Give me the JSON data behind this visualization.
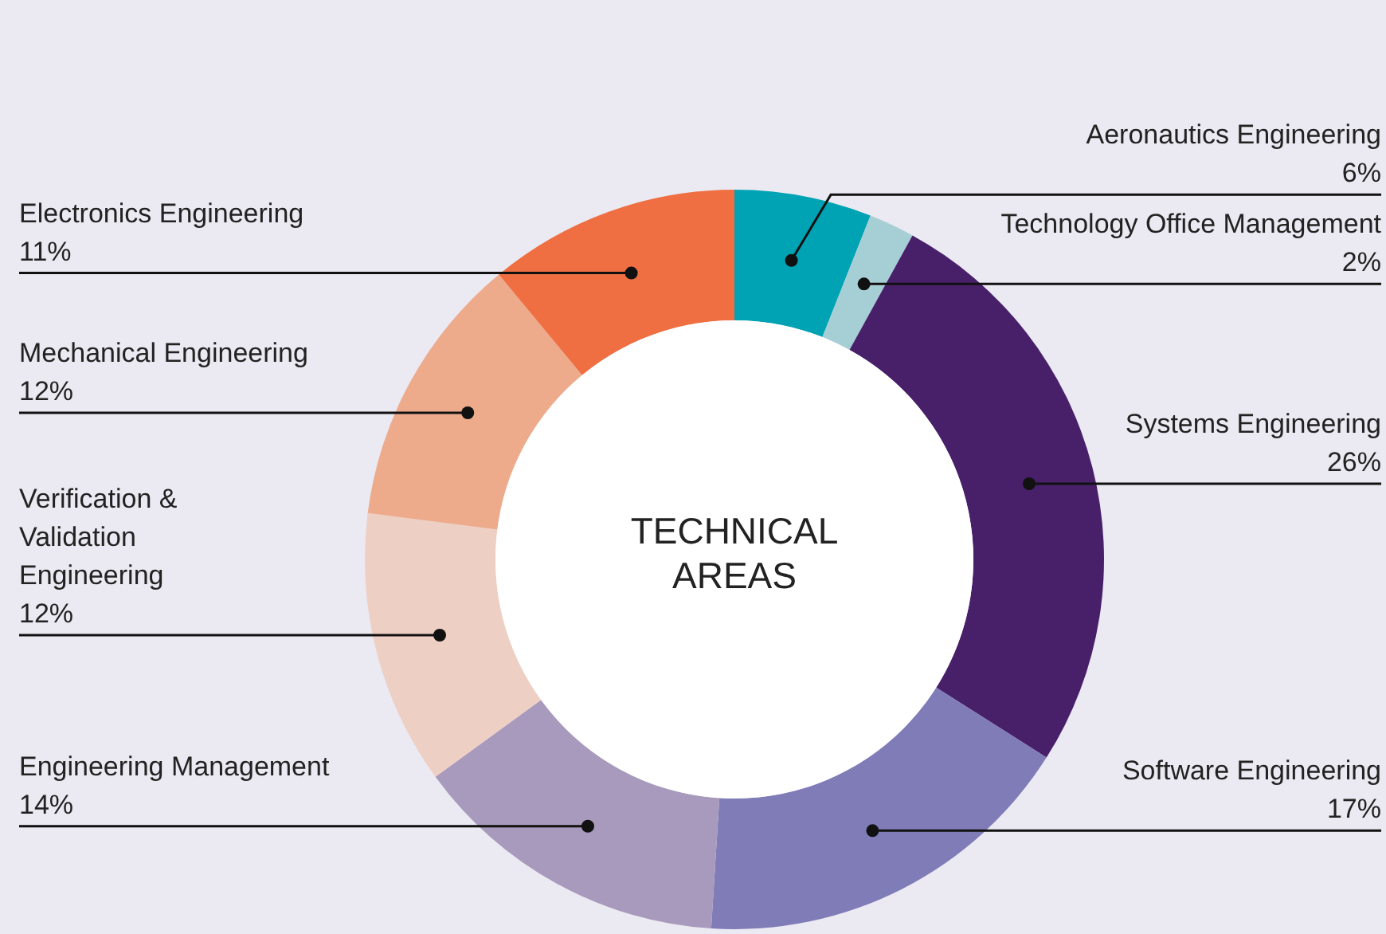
{
  "chart_data": {
    "type": "donut",
    "title": "TECHNICAL AREAS",
    "categories": [
      "Aeronautics Engineering",
      "Technology Office Management",
      "Systems Engineering",
      "Software Engineering",
      "Engineering Management",
      "Verification & Validation Engineering",
      "Mechanical Engineering",
      "Electronics Engineering"
    ],
    "values": [
      6,
      2,
      26,
      17,
      14,
      12,
      12,
      11
    ],
    "value_labels": [
      "6%",
      "2%",
      "26%",
      "17%",
      "14%",
      "12%",
      "12%",
      "11%"
    ],
    "colors": [
      "#00a3b4",
      "#a6cfd5",
      "#48206a",
      "#7f7cb8",
      "#a89abc",
      "#eecfc4",
      "#eeab8b",
      "#ef6f42"
    ]
  }
}
